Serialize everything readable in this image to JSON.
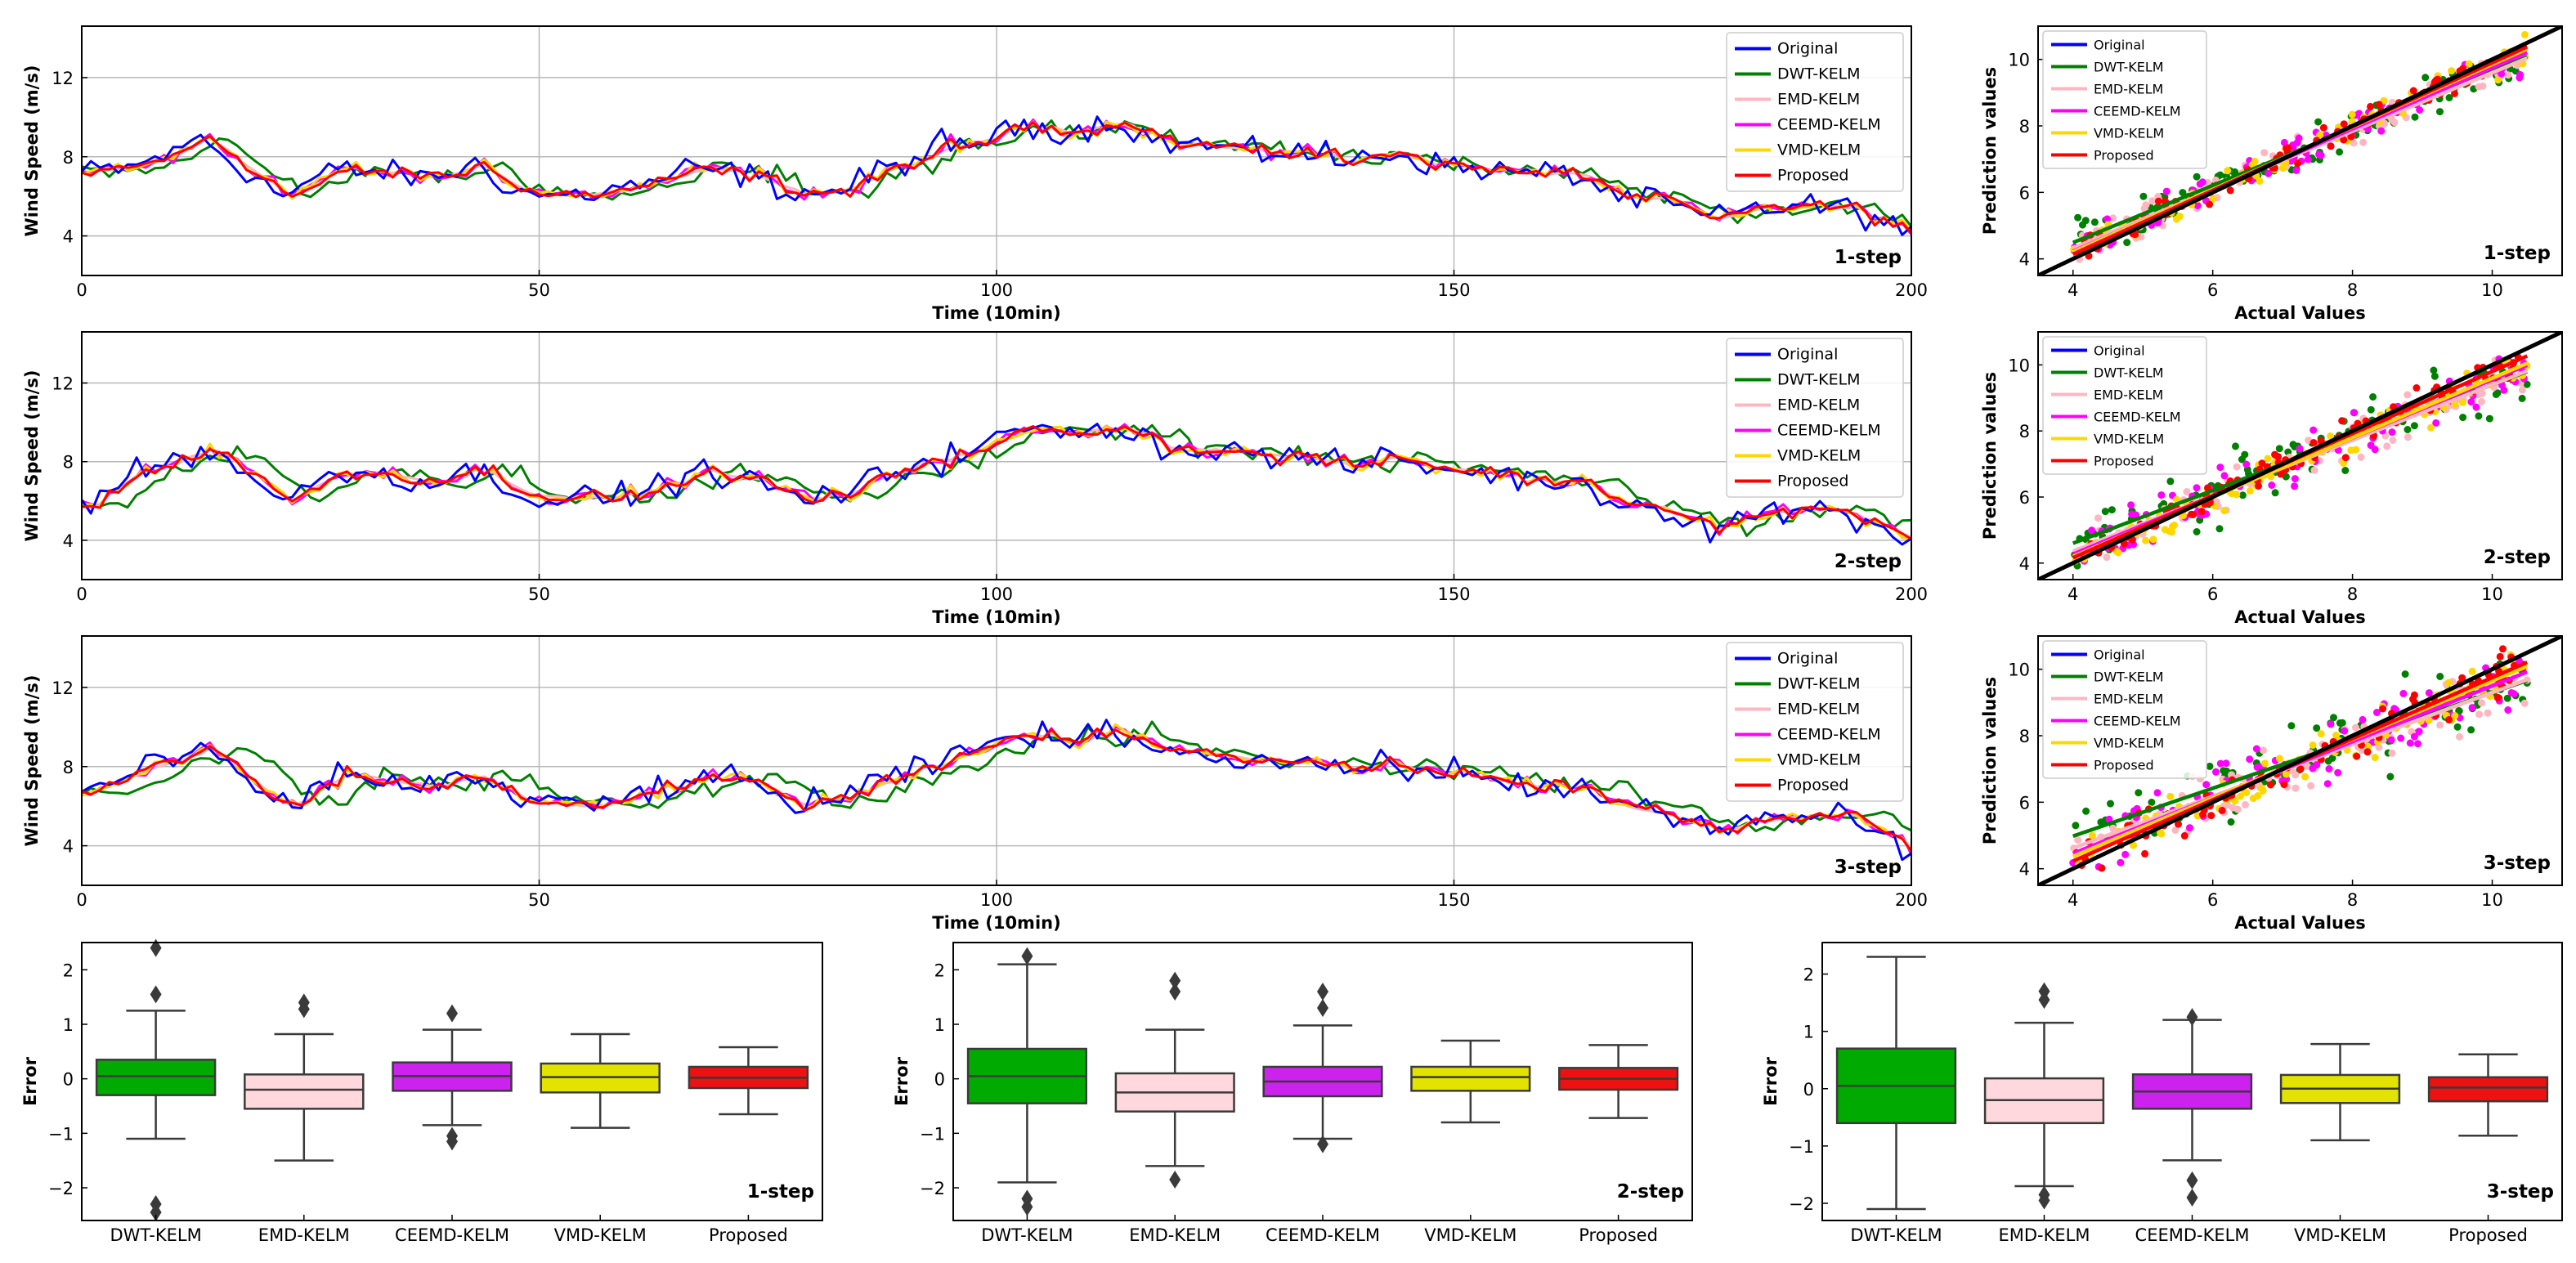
{
  "figure": {
    "colors": {
      "Original": "#0000ff",
      "DWT-KELM": "#008000",
      "EMD-KELM": "#ffb6c1",
      "CEEMD-KELM": "#ff00ff",
      "VMD-KELM": "#ffd700",
      "Proposed": "#ff0000",
      "ideal": "#000000"
    },
    "box_colors": [
      "#00aa00",
      "#ffd8de",
      "#cc22ee",
      "#e3e300",
      "#ee1111"
    ]
  },
  "chart_data": [
    {
      "id": "ts-1",
      "type": "line",
      "step_label": "1-step",
      "xlabel": "Time (10min)",
      "ylabel": "Wind Speed (m/s)",
      "xlim": [
        0,
        200
      ],
      "ylim": [
        2,
        14.6
      ],
      "xticks": [
        "0",
        "50",
        "100",
        "150",
        "200"
      ],
      "xtick_values": [
        0,
        50,
        100,
        150,
        200
      ],
      "yticks": [
        "4",
        "8",
        "12"
      ],
      "ytick_values": [
        4,
        8,
        12
      ],
      "legend": [
        "Original",
        "DWT-KELM",
        "EMD-KELM",
        "CEEMD-KELM",
        "VMD-KELM",
        "Proposed"
      ],
      "legend_position": "top-right",
      "x": [
        0,
        5,
        10,
        13,
        18,
        22,
        28,
        33,
        38,
        43,
        48,
        53,
        58,
        63,
        68,
        73,
        78,
        83,
        88,
        93,
        98,
        103,
        108,
        113,
        118,
        123,
        128,
        133,
        138,
        143,
        148,
        153,
        158,
        163,
        168,
        173,
        178,
        183,
        188,
        193,
        198,
        200
      ],
      "series_base": [
        7.2,
        7.4,
        8.2,
        9.0,
        7.3,
        6.0,
        7.4,
        7.2,
        6.9,
        7.6,
        6.2,
        6.0,
        6.3,
        6.8,
        7.4,
        7.0,
        6.2,
        6.3,
        7.4,
        8.2,
        8.8,
        9.6,
        9.3,
        9.8,
        8.7,
        8.6,
        8.2,
        8.3,
        7.7,
        8.3,
        7.6,
        7.4,
        7.1,
        7.2,
        6.0,
        5.7,
        4.8,
        5.4,
        5.5,
        5.4,
        4.5,
        4.2
      ]
    },
    {
      "id": "ts-2",
      "type": "line",
      "step_label": "2-step",
      "xlabel": "Time (10min)",
      "ylabel": "Wind Speed (m/s)",
      "xlim": [
        0,
        200
      ],
      "ylim": [
        2,
        14.6
      ],
      "xticks": [
        "0",
        "50",
        "100",
        "150",
        "200"
      ],
      "xtick_values": [
        0,
        50,
        100,
        150,
        200
      ],
      "yticks": [
        "4",
        "8",
        "12"
      ],
      "ytick_values": [
        4,
        8,
        12
      ],
      "legend": [
        "Original",
        "DWT-KELM",
        "EMD-KELM",
        "CEEMD-KELM",
        "VMD-KELM",
        "Proposed"
      ],
      "legend_position": "top-right",
      "x": [
        0,
        5,
        10,
        13,
        18,
        22,
        28,
        33,
        38,
        43,
        48,
        53,
        58,
        63,
        68,
        73,
        78,
        83,
        88,
        93,
        98,
        103,
        108,
        113,
        118,
        123,
        128,
        133,
        138,
        143,
        148,
        153,
        158,
        163,
        168,
        173,
        178,
        183,
        188,
        193,
        198,
        200
      ],
      "series_base": [
        5.6,
        7.3,
        8.0,
        8.7,
        7.5,
        6.0,
        7.5,
        7.4,
        6.9,
        7.6,
        6.4,
        6.1,
        6.2,
        6.7,
        7.5,
        7.1,
        6.1,
        6.3,
        7.4,
        8.1,
        8.7,
        9.7,
        9.4,
        9.9,
        8.8,
        8.6,
        8.4,
        8.2,
        7.8,
        8.2,
        7.6,
        7.5,
        7.0,
        7.1,
        5.9,
        5.6,
        4.7,
        5.3,
        5.6,
        5.4,
        4.4,
        4.1
      ]
    },
    {
      "id": "ts-3",
      "type": "line",
      "step_label": "3-step",
      "xlabel": "Time (10min)",
      "ylabel": "Wind Speed (m/s)",
      "xlim": [
        0,
        200
      ],
      "ylim": [
        2,
        14.6
      ],
      "xticks": [
        "0",
        "50",
        "100",
        "150",
        "200"
      ],
      "xtick_values": [
        0,
        50,
        100,
        150,
        200
      ],
      "yticks": [
        "4",
        "8",
        "12"
      ],
      "ytick_values": [
        4,
        8,
        12
      ],
      "legend": [
        "Original",
        "DWT-KELM",
        "EMD-KELM",
        "CEEMD-KELM",
        "VMD-KELM",
        "Proposed"
      ],
      "legend_position": "top-right",
      "x": [
        0,
        5,
        10,
        13,
        18,
        22,
        28,
        33,
        38,
        43,
        48,
        53,
        58,
        63,
        68,
        73,
        78,
        83,
        88,
        93,
        98,
        103,
        108,
        113,
        118,
        123,
        128,
        133,
        138,
        143,
        148,
        153,
        158,
        163,
        168,
        173,
        178,
        183,
        188,
        193,
        198,
        200
      ],
      "series_base": [
        6.6,
        7.6,
        8.3,
        8.9,
        7.2,
        5.9,
        7.6,
        7.3,
        7.0,
        7.5,
        6.3,
        6.0,
        6.2,
        6.9,
        7.4,
        7.2,
        6.1,
        6.4,
        7.3,
        8.1,
        8.9,
        9.8,
        9.2,
        9.9,
        8.9,
        8.7,
        8.3,
        8.3,
        7.9,
        8.1,
        7.7,
        7.4,
        7.1,
        7.0,
        6.0,
        5.5,
        4.8,
        5.2,
        5.5,
        5.5,
        4.3,
        3.7
      ]
    },
    {
      "id": "sc-1",
      "type": "scatter",
      "step_label": "1-step",
      "xlabel": "Actual Values",
      "ylabel": "Prediction values",
      "xlim": [
        3.5,
        11
      ],
      "ylim": [
        3.5,
        11
      ],
      "xticks": [
        "4",
        "6",
        "8",
        "10"
      ],
      "xtick_values": [
        4,
        6,
        8,
        10
      ],
      "yticks": [
        "4",
        "6",
        "8",
        "10"
      ],
      "ytick_values": [
        4,
        6,
        8,
        10
      ],
      "legend": [
        "Original",
        "DWT-KELM",
        "EMD-KELM",
        "CEEMD-KELM",
        "VMD-KELM",
        "Proposed"
      ],
      "legend_position": "top-left",
      "fit_lines": {
        "Original": [
          1.0,
          0.0
        ],
        "DWT-KELM": [
          0.86,
          1.05
        ],
        "EMD-KELM": [
          0.88,
          0.8
        ],
        "CEEMD-KELM": [
          0.92,
          0.55
        ],
        "VMD-KELM": [
          0.94,
          0.45
        ],
        "Proposed": [
          0.96,
          0.3
        ]
      }
    },
    {
      "id": "sc-2",
      "type": "scatter",
      "step_label": "2-step",
      "xlabel": "Actual Values",
      "ylabel": "Prediction values",
      "xlim": [
        3.5,
        11
      ],
      "ylim": [
        3.5,
        11
      ],
      "xticks": [
        "4",
        "6",
        "8",
        "10"
      ],
      "xtick_values": [
        4,
        6,
        8,
        10
      ],
      "yticks": [
        "4",
        "6",
        "8",
        "10"
      ],
      "ytick_values": [
        4,
        6,
        8,
        10
      ],
      "legend": [
        "Original",
        "DWT-KELM",
        "EMD-KELM",
        "CEEMD-KELM",
        "VMD-KELM",
        "Proposed"
      ],
      "legend_position": "top-left",
      "fit_lines": {
        "Original": [
          1.0,
          0.0
        ],
        "DWT-KELM": [
          0.8,
          1.4
        ],
        "EMD-KELM": [
          0.84,
          1.0
        ],
        "CEEMD-KELM": [
          0.88,
          0.75
        ],
        "VMD-KELM": [
          0.9,
          0.6
        ],
        "Proposed": [
          0.94,
          0.4
        ]
      }
    },
    {
      "id": "sc-3",
      "type": "scatter",
      "step_label": "3-step",
      "xlabel": "Actual Values",
      "ylabel": "Prediction values",
      "xlim": [
        3.5,
        11
      ],
      "ylim": [
        3.5,
        11
      ],
      "xticks": [
        "4",
        "6",
        "8",
        "10"
      ],
      "xtick_values": [
        4,
        6,
        8,
        10
      ],
      "yticks": [
        "4",
        "6",
        "8",
        "10"
      ],
      "ytick_values": [
        4,
        6,
        8,
        10
      ],
      "legend": [
        "Original",
        "DWT-KELM",
        "EMD-KELM",
        "CEEMD-KELM",
        "VMD-KELM",
        "Proposed"
      ],
      "legend_position": "top-left",
      "fit_lines": {
        "Original": [
          1.0,
          0.0
        ],
        "DWT-KELM": [
          0.72,
          2.1
        ],
        "EMD-KELM": [
          0.78,
          1.5
        ],
        "CEEMD-KELM": [
          0.84,
          1.1
        ],
        "VMD-KELM": [
          0.88,
          0.85
        ],
        "Proposed": [
          0.92,
          0.55
        ]
      }
    },
    {
      "id": "box-1",
      "type": "box",
      "step_label": "1-step",
      "ylabel": "Error",
      "ylim": [
        -2.6,
        2.5
      ],
      "yticks": [
        "−2",
        "−1",
        "0",
        "1",
        "2"
      ],
      "ytick_values": [
        -2,
        -1,
        0,
        1,
        2
      ],
      "categories": [
        "DWT-KELM",
        "EMD-KELM",
        "CEEMD-KELM",
        "VMD-KELM",
        "Proposed"
      ],
      "boxes": [
        {
          "whislo": -1.1,
          "q1": -0.3,
          "med": 0.05,
          "q3": 0.35,
          "whishi": 1.25,
          "fliers": [
            2.4,
            1.55,
            -2.3,
            -2.45
          ]
        },
        {
          "whislo": -1.5,
          "q1": -0.55,
          "med": -0.2,
          "q3": 0.08,
          "whishi": 0.82,
          "fliers": [
            1.4,
            1.28
          ]
        },
        {
          "whislo": -0.85,
          "q1": -0.22,
          "med": 0.05,
          "q3": 0.3,
          "whishi": 0.9,
          "fliers": [
            1.2,
            -1.05,
            -1.15
          ]
        },
        {
          "whislo": -0.9,
          "q1": -0.25,
          "med": 0.03,
          "q3": 0.28,
          "whishi": 0.82,
          "fliers": []
        },
        {
          "whislo": -0.65,
          "q1": -0.17,
          "med": 0.02,
          "q3": 0.22,
          "whishi": 0.58,
          "fliers": []
        }
      ]
    },
    {
      "id": "box-2",
      "type": "box",
      "step_label": "2-step",
      "ylabel": "Error",
      "ylim": [
        -2.6,
        2.5
      ],
      "yticks": [
        "−2",
        "−1",
        "0",
        "1",
        "2"
      ],
      "ytick_values": [
        -2,
        -1,
        0,
        1,
        2
      ],
      "categories": [
        "DWT-KELM",
        "EMD-KELM",
        "CEEMD-KELM",
        "VMD-KELM",
        "Proposed"
      ],
      "boxes": [
        {
          "whislo": -1.9,
          "q1": -0.45,
          "med": 0.05,
          "q3": 0.55,
          "whishi": 2.1,
          "fliers": [
            2.25,
            -2.2,
            -2.35
          ]
        },
        {
          "whislo": -1.6,
          "q1": -0.6,
          "med": -0.25,
          "q3": 0.1,
          "whishi": 0.9,
          "fliers": [
            1.8,
            1.6,
            -1.85
          ]
        },
        {
          "whislo": -1.1,
          "q1": -0.32,
          "med": -0.05,
          "q3": 0.22,
          "whishi": 0.98,
          "fliers": [
            1.6,
            1.3,
            -1.2
          ]
        },
        {
          "whislo": -0.8,
          "q1": -0.22,
          "med": 0.03,
          "q3": 0.22,
          "whishi": 0.7,
          "fliers": []
        },
        {
          "whislo": -0.72,
          "q1": -0.2,
          "med": 0.0,
          "q3": 0.2,
          "whishi": 0.62,
          "fliers": []
        }
      ]
    },
    {
      "id": "box-3",
      "type": "box",
      "step_label": "3-step",
      "ylabel": "Error",
      "ylim": [
        -2.3,
        2.55
      ],
      "yticks": [
        "−2",
        "−1",
        "0",
        "1",
        "2"
      ],
      "ytick_values": [
        -2,
        -1,
        0,
        1,
        2
      ],
      "categories": [
        "DWT-KELM",
        "EMD-KELM",
        "CEEMD-KELM",
        "VMD-KELM",
        "Proposed"
      ],
      "boxes": [
        {
          "whislo": -2.1,
          "q1": -0.6,
          "med": 0.05,
          "q3": 0.7,
          "whishi": 2.3,
          "fliers": []
        },
        {
          "whislo": -1.7,
          "q1": -0.6,
          "med": -0.2,
          "q3": 0.18,
          "whishi": 1.15,
          "fliers": [
            1.7,
            1.55,
            -1.85,
            -1.95
          ]
        },
        {
          "whislo": -1.25,
          "q1": -0.35,
          "med": -0.05,
          "q3": 0.25,
          "whishi": 1.2,
          "fliers": [
            1.25,
            -1.6,
            -1.9
          ]
        },
        {
          "whislo": -0.9,
          "q1": -0.25,
          "med": 0.0,
          "q3": 0.24,
          "whishi": 0.78,
          "fliers": []
        },
        {
          "whislo": -0.82,
          "q1": -0.22,
          "med": 0.02,
          "q3": 0.2,
          "whishi": 0.6,
          "fliers": []
        }
      ]
    }
  ]
}
